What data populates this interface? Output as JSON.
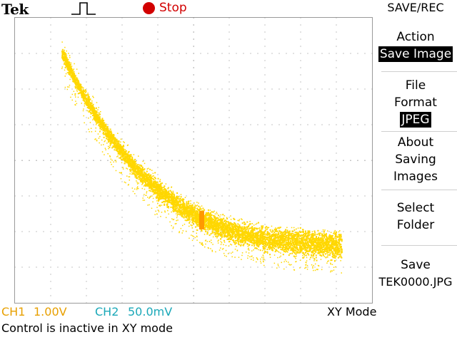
{
  "header": {
    "brand": "Tek",
    "trigger_icon": "rising-pulse-icon",
    "run_state": "Stop",
    "run_state_color": "#d20000"
  },
  "menu": {
    "title": "SAVE/REC",
    "action": {
      "line1": "Action",
      "value": "Save Image"
    },
    "file_format": {
      "line1": "File",
      "line2": "Format",
      "value": "JPEG"
    },
    "about": {
      "line1": "About",
      "line2": "Saving",
      "line3": "Images"
    },
    "select_folder": {
      "line1": "Select",
      "line2": "Folder"
    },
    "save": {
      "line1": "Save",
      "line2": "TEK0000.JPG"
    }
  },
  "status": {
    "ch1_label": "CH1",
    "ch1_value": "1.00V",
    "ch1_color": "#e8a000",
    "ch2_label": "CH2",
    "ch2_value": "50.0mV",
    "ch2_color": "#1aa8b8",
    "mode": "XY Mode",
    "message": "Control is inactive in XY mode"
  },
  "display": {
    "trace_color": "#ffd700",
    "cursor_color": "#ff9900"
  }
}
